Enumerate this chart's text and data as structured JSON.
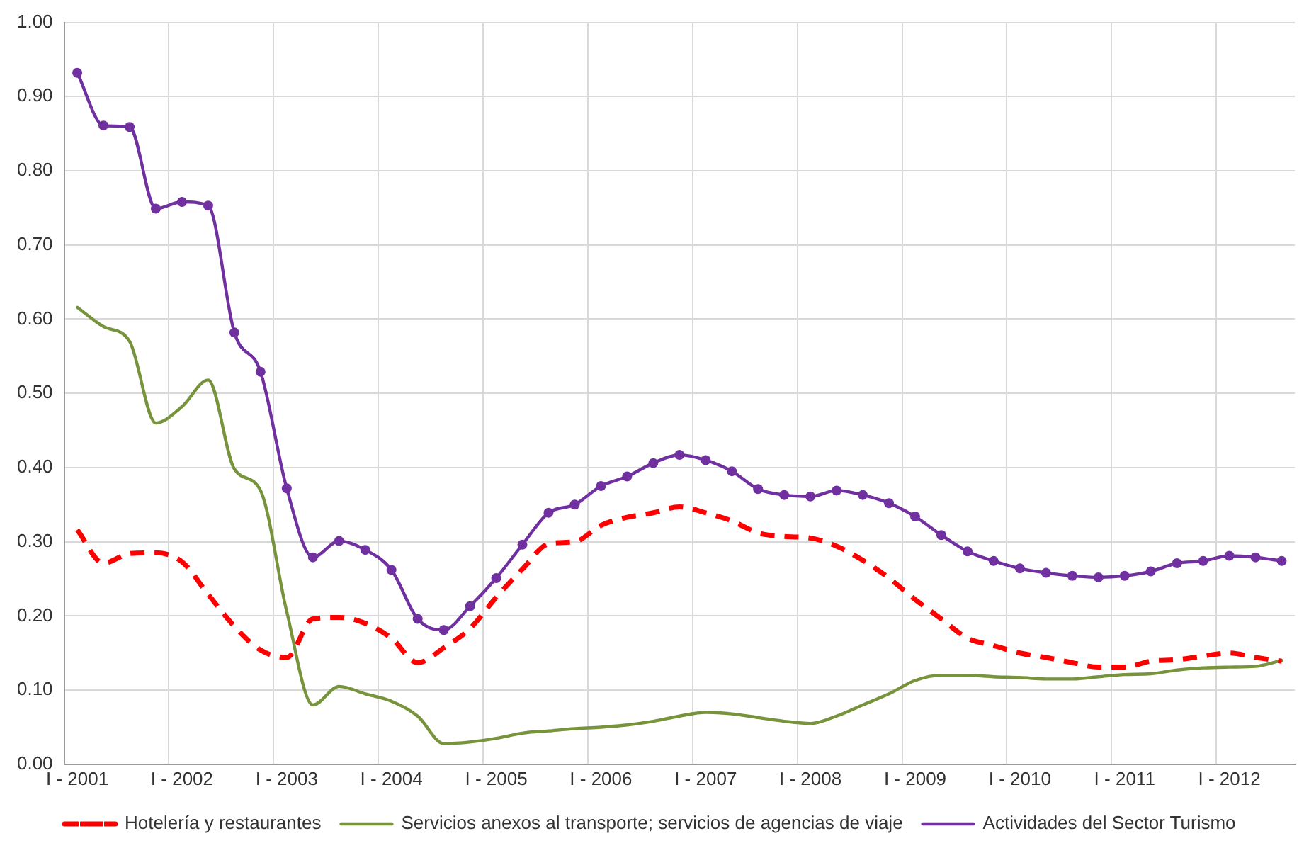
{
  "chart_data": {
    "type": "line",
    "categories": [
      "I - 2001",
      null,
      null,
      null,
      "I - 2002",
      null,
      null,
      null,
      "I - 2003",
      null,
      null,
      null,
      "I - 2004",
      null,
      null,
      null,
      "I - 2005",
      null,
      null,
      null,
      "I - 2006",
      null,
      null,
      null,
      "I - 2007",
      null,
      null,
      null,
      "I - 2008",
      null,
      null,
      null,
      "I - 2009",
      null,
      null,
      null,
      "I - 2010",
      null,
      null,
      null,
      "I - 2011",
      null,
      null,
      null,
      "I - 2012",
      null,
      null
    ],
    "series": [
      {
        "name": "Hotelería y restaurantes",
        "color": "#ff0000",
        "line_style": "dashed",
        "marker": "none",
        "values": [
          0.316,
          0.271,
          0.284,
          0.285,
          0.273,
          0.229,
          0.186,
          0.154,
          0.144,
          0.196,
          0.198,
          0.19,
          0.17,
          0.137,
          0.157,
          0.183,
          0.225,
          0.263,
          0.297,
          0.3,
          0.322,
          0.333,
          0.339,
          0.347,
          0.339,
          0.328,
          0.312,
          0.307,
          0.305,
          0.294,
          0.275,
          0.251,
          0.222,
          0.196,
          0.17,
          0.16,
          0.15,
          0.144,
          0.137,
          0.131,
          0.131,
          0.139,
          0.141,
          0.146,
          0.15,
          0.144,
          0.139
        ]
      },
      {
        "name": "Servicios anexos al transporte; servicios de agencias de viaje",
        "color": "#77933c",
        "line_style": "solid",
        "marker": "none",
        "values": [
          0.616,
          0.59,
          0.57,
          0.46,
          0.482,
          0.518,
          0.398,
          0.369,
          0.206,
          0.08,
          0.105,
          0.095,
          0.085,
          0.065,
          0.028,
          0.03,
          0.035,
          0.042,
          0.045,
          0.048,
          0.05,
          0.053,
          0.058,
          0.065,
          0.07,
          0.068,
          0.063,
          0.058,
          0.055,
          0.065,
          0.08,
          0.095,
          0.113,
          0.12,
          0.12,
          0.118,
          0.117,
          0.115,
          0.115,
          0.118,
          0.121,
          0.122,
          0.127,
          0.13,
          0.131,
          0.132,
          0.14
        ]
      },
      {
        "name": "Actividades del Sector Turismo",
        "color": "#7030a0",
        "line_style": "solid",
        "marker": "circle",
        "values": [
          0.932,
          0.861,
          0.859,
          0.749,
          0.758,
          0.753,
          0.582,
          0.529,
          0.372,
          0.279,
          0.301,
          0.289,
          0.262,
          0.196,
          0.181,
          0.213,
          0.251,
          0.296,
          0.339,
          0.35,
          0.375,
          0.388,
          0.406,
          0.417,
          0.41,
          0.395,
          0.371,
          0.363,
          0.361,
          0.369,
          0.363,
          0.352,
          0.334,
          0.309,
          0.287,
          0.274,
          0.264,
          0.258,
          0.254,
          0.252,
          0.254,
          0.26,
          0.271,
          0.274,
          0.281,
          0.279,
          0.274
        ]
      }
    ],
    "ylim": [
      0,
      1
    ],
    "yticks": [
      {
        "value": 0,
        "label": "0.00"
      },
      {
        "value": 0.1,
        "label": "0.10"
      },
      {
        "value": 0.2,
        "label": "0.20"
      },
      {
        "value": 0.3,
        "label": "0.30"
      },
      {
        "value": 0.4,
        "label": "0.40"
      },
      {
        "value": 0.5,
        "label": "0.50"
      },
      {
        "value": 0.6,
        "label": "0.60"
      },
      {
        "value": 0.7,
        "label": "0.70"
      },
      {
        "value": 0.8,
        "label": "0.80"
      },
      {
        "value": 0.9,
        "label": "0.90"
      },
      {
        "value": 1,
        "label": "1.00"
      }
    ],
    "grid": true,
    "legend": "bottom"
  }
}
